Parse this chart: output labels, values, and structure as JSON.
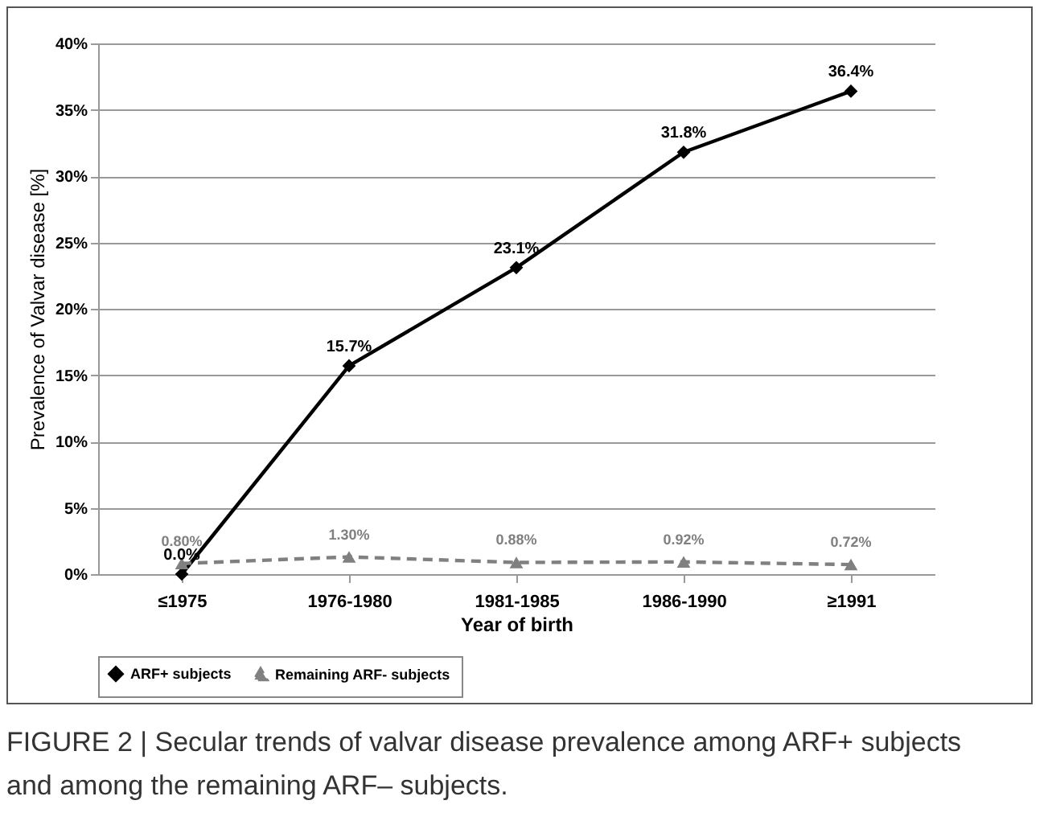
{
  "chart_data": {
    "type": "line",
    "xlabel": "Year of birth",
    "ylabel": "Prevalence of Valvar disease [%]",
    "categories": [
      "≤1975",
      "1976-1980",
      "1981-1985",
      "1986-1990",
      "≥1991"
    ],
    "series": [
      {
        "name": "ARF+ subjects",
        "color": "#000000",
        "marker": "diamond",
        "line_style": "solid",
        "values": [
          0,
          15.7,
          23.1,
          31.8,
          36.4
        ],
        "value_labels": [
          "0.0%",
          "15.7%",
          "23.1%",
          "31.8%",
          "36.4%"
        ]
      },
      {
        "name": "Remaining ARF- subjects",
        "color": "#808080",
        "marker": "triangle",
        "line_style": "dashed",
        "values": [
          0.8,
          1.3,
          0.88,
          0.92,
          0.72
        ],
        "value_labels": [
          "0.80%",
          "1.30%",
          "0.88%",
          "0.92%",
          "0.72%"
        ]
      }
    ],
    "ylim": [
      0,
      40
    ],
    "yticks": [
      {
        "value": 0,
        "label": "0%"
      },
      {
        "value": 5,
        "label": "5%"
      },
      {
        "value": 10,
        "label": "10%"
      },
      {
        "value": 15,
        "label": "15%"
      },
      {
        "value": 20,
        "label": "20%"
      },
      {
        "value": 25,
        "label": "25%"
      },
      {
        "value": 30,
        "label": "30%"
      },
      {
        "value": 35,
        "label": "35%"
      },
      {
        "value": 40,
        "label": "40%"
      }
    ],
    "grid": "y",
    "legend": "bottom",
    "annotations": [
      "FIGURE 2 | Secular trends of valvar disease prevalence among ARF+ subjects and among the remaining ARF– subjects."
    ]
  }
}
